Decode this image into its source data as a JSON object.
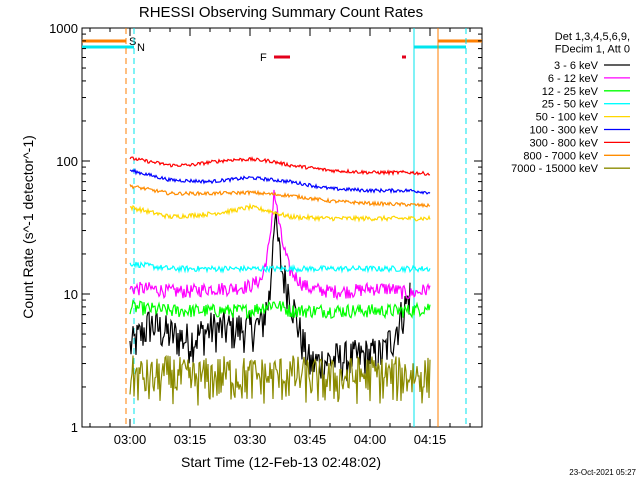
{
  "chart_data": {
    "type": "line",
    "title": "RHESSI Observing Summary Count Rates",
    "xlabel": "Start Time (12-Feb-13 02:48:02)",
    "ylabel": "Count Rate (s^-1 detector^-1)",
    "yscale": "log",
    "ylim": [
      1,
      1000
    ],
    "xlim": [
      "02:48",
      "04:28"
    ],
    "x_ticks": [
      "03:00",
      "03:15",
      "03:30",
      "03:45",
      "04:00",
      "04:15"
    ],
    "y_ticks": [
      "1",
      "10",
      "100",
      "1000"
    ],
    "legend_placement": "right",
    "legend_header": [
      "Det 1,3,4,5,6,9,",
      "FDecim 1, Att 0"
    ],
    "footer_date": "23-Oct-2021 05:27",
    "flags": [
      {
        "label": "S",
        "start": "02:48",
        "end": "02:59",
        "color": "#ff7f00"
      },
      {
        "label": "N",
        "start": "02:48",
        "end": "03:01",
        "color": "#00e5ee"
      },
      {
        "label": "F",
        "start": "03:36",
        "end": "03:40",
        "color": "#e3001b"
      },
      {
        "label": "",
        "start": "04:08",
        "end": "04:09",
        "color": "#e3001b"
      },
      {
        "label": "",
        "start": "04:11",
        "end": "04:24",
        "color": "#00e5ee"
      },
      {
        "label": "",
        "start": "04:17",
        "end": "04:28",
        "color": "#ff7f00"
      }
    ],
    "markers": [
      {
        "time": "02:59",
        "color": "#ff7f00",
        "style": "dashed"
      },
      {
        "time": "03:01",
        "color": "#00e5ee",
        "style": "dashed"
      },
      {
        "time": "04:11",
        "color": "#00e5ee",
        "style": "solid"
      },
      {
        "time": "04:17",
        "color": "#ff7f00",
        "style": "solid"
      },
      {
        "time": "04:24",
        "color": "#00e5ee",
        "style": "dashed"
      }
    ],
    "series": [
      {
        "name": "3 - 6 keV",
        "color": "#000000",
        "x": [
          "03:00",
          "03:05",
          "03:10",
          "03:15",
          "03:20",
          "03:25",
          "03:30",
          "03:33",
          "03:35",
          "03:36",
          "03:38",
          "03:40",
          "03:43",
          "03:45",
          "03:50",
          "03:55",
          "04:00",
          "04:03",
          "04:06",
          "04:10"
        ],
        "y": [
          4,
          6,
          5,
          4.5,
          5.5,
          5.5,
          5.5,
          6,
          10,
          40,
          15,
          10,
          4.5,
          3,
          3.2,
          3.3,
          3.5,
          3.5,
          5,
          10
        ]
      },
      {
        "name": "6 - 12 keV",
        "color": "#ff00ff",
        "x": [
          "03:00",
          "03:05",
          "03:10",
          "03:15",
          "03:20",
          "03:25",
          "03:30",
          "03:33",
          "03:35",
          "03:36",
          "03:38",
          "03:40",
          "03:43",
          "03:45",
          "03:50",
          "03:55",
          "04:00",
          "04:05",
          "04:10",
          "04:15"
        ],
        "y": [
          11,
          11,
          10.5,
          10.5,
          11,
          11,
          11.5,
          13,
          25,
          60,
          25,
          15,
          12,
          11,
          10.5,
          10.5,
          11,
          11,
          10,
          11
        ]
      },
      {
        "name": "12 - 25 keV",
        "color": "#00ff00",
        "x": [
          "03:00",
          "03:10",
          "03:20",
          "03:30",
          "03:36",
          "03:40",
          "03:50",
          "04:00",
          "04:10",
          "04:15"
        ],
        "y": [
          8,
          7.5,
          7.5,
          7.5,
          8.5,
          7.5,
          7.5,
          7.5,
          7.5,
          8
        ]
      },
      {
        "name": "25 - 50 keV",
        "color": "#00ffff",
        "x": [
          "03:00",
          "03:10",
          "03:20",
          "03:30",
          "03:40",
          "03:50",
          "04:00",
          "04:10",
          "04:15"
        ],
        "y": [
          17,
          15.5,
          15.5,
          15.5,
          15.5,
          15.5,
          15.5,
          15.5,
          15.5
        ]
      },
      {
        "name": "50 - 100 keV",
        "color": "#ffd700",
        "x": [
          "03:00",
          "03:10",
          "03:20",
          "03:25",
          "03:30",
          "03:35",
          "03:40",
          "03:50",
          "04:00",
          "04:10",
          "04:15"
        ],
        "y": [
          45,
          38,
          40,
          42,
          45,
          42,
          38,
          37,
          37,
          37,
          37
        ]
      },
      {
        "name": "100 - 300 keV",
        "color": "#0000ff",
        "x": [
          "03:00",
          "03:10",
          "03:20",
          "03:30",
          "03:40",
          "03:50",
          "04:00",
          "04:10",
          "04:15"
        ],
        "y": [
          85,
          72,
          70,
          75,
          70,
          62,
          60,
          60,
          58
        ]
      },
      {
        "name": "300 - 800 keV",
        "color": "#ff0000",
        "x": [
          "03:00",
          "03:10",
          "03:15",
          "03:20",
          "03:25",
          "03:30",
          "03:35",
          "03:40",
          "03:50",
          "04:00",
          "04:10",
          "04:15"
        ],
        "y": [
          105,
          93,
          93,
          98,
          102,
          103,
          100,
          93,
          85,
          82,
          82,
          80
        ]
      },
      {
        "name": "800 - 7000 keV",
        "color": "#ff8c00",
        "x": [
          "03:00",
          "03:10",
          "03:20",
          "03:30",
          "03:40",
          "03:50",
          "04:00",
          "04:10",
          "04:15"
        ],
        "y": [
          65,
          57,
          57,
          58,
          55,
          50,
          48,
          47,
          46
        ]
      },
      {
        "name": "7000 - 15000 keV",
        "color": "#8b8b00",
        "x": [
          "03:00",
          "03:05",
          "03:10",
          "03:15",
          "03:20",
          "03:25",
          "03:30",
          "03:35",
          "03:40",
          "03:45",
          "03:50",
          "03:55",
          "04:00",
          "04:05",
          "04:10",
          "04:15"
        ],
        "y": [
          2.5,
          2.3,
          2.5,
          2.3,
          2.4,
          2.5,
          2.4,
          2.4,
          2.5,
          2.4,
          2.3,
          2.4,
          2.5,
          2.4,
          2.5,
          2.4
        ]
      }
    ]
  }
}
